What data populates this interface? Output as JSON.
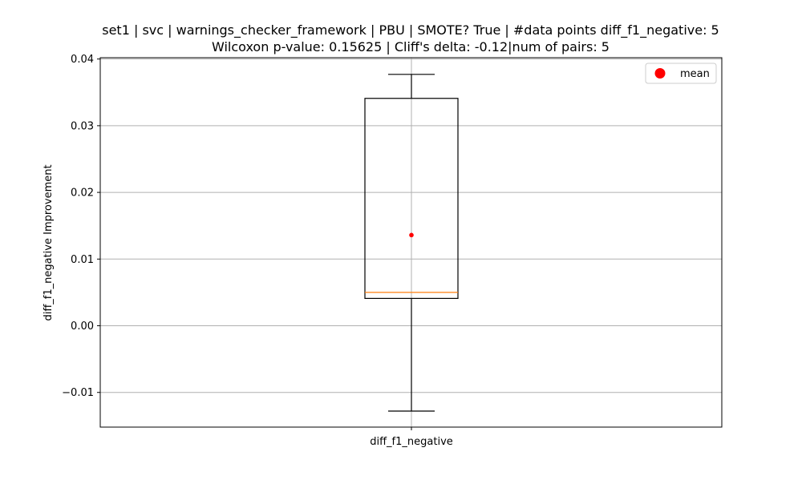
{
  "chart_data": {
    "type": "box",
    "title_line1": "set1 | svc | warnings_checker_framework | PBU | SMOTE? True | #data points diff_f1_negative: 5",
    "title_line2": "Wilcoxon p-value: 0.15625 | Cliff's delta: -0.12|num of pairs: 5",
    "ylabel": "diff_f1_negative Improvement",
    "xlabel": "",
    "categories": [
      "diff_f1_negative"
    ],
    "ylim": [
      -0.0152,
      0.0402
    ],
    "yticks": [
      -0.01,
      0.0,
      0.01,
      0.02,
      0.03,
      0.04
    ],
    "ytick_labels": [
      "−0.01",
      "0.00",
      "0.01",
      "0.02",
      "0.03",
      "0.04"
    ],
    "boxes": [
      {
        "category": "diff_f1_negative",
        "whisker_low": -0.0128,
        "q1": 0.0041,
        "median": 0.005,
        "q3": 0.0341,
        "whisker_high": 0.0377,
        "mean": 0.0136
      }
    ],
    "legend": {
      "entries": [
        "mean"
      ],
      "placement": "top-right"
    },
    "grid": true,
    "colors": {
      "median": "#ff7f0e",
      "mean": "#ff0000",
      "grid": "#b0b0b0"
    }
  }
}
